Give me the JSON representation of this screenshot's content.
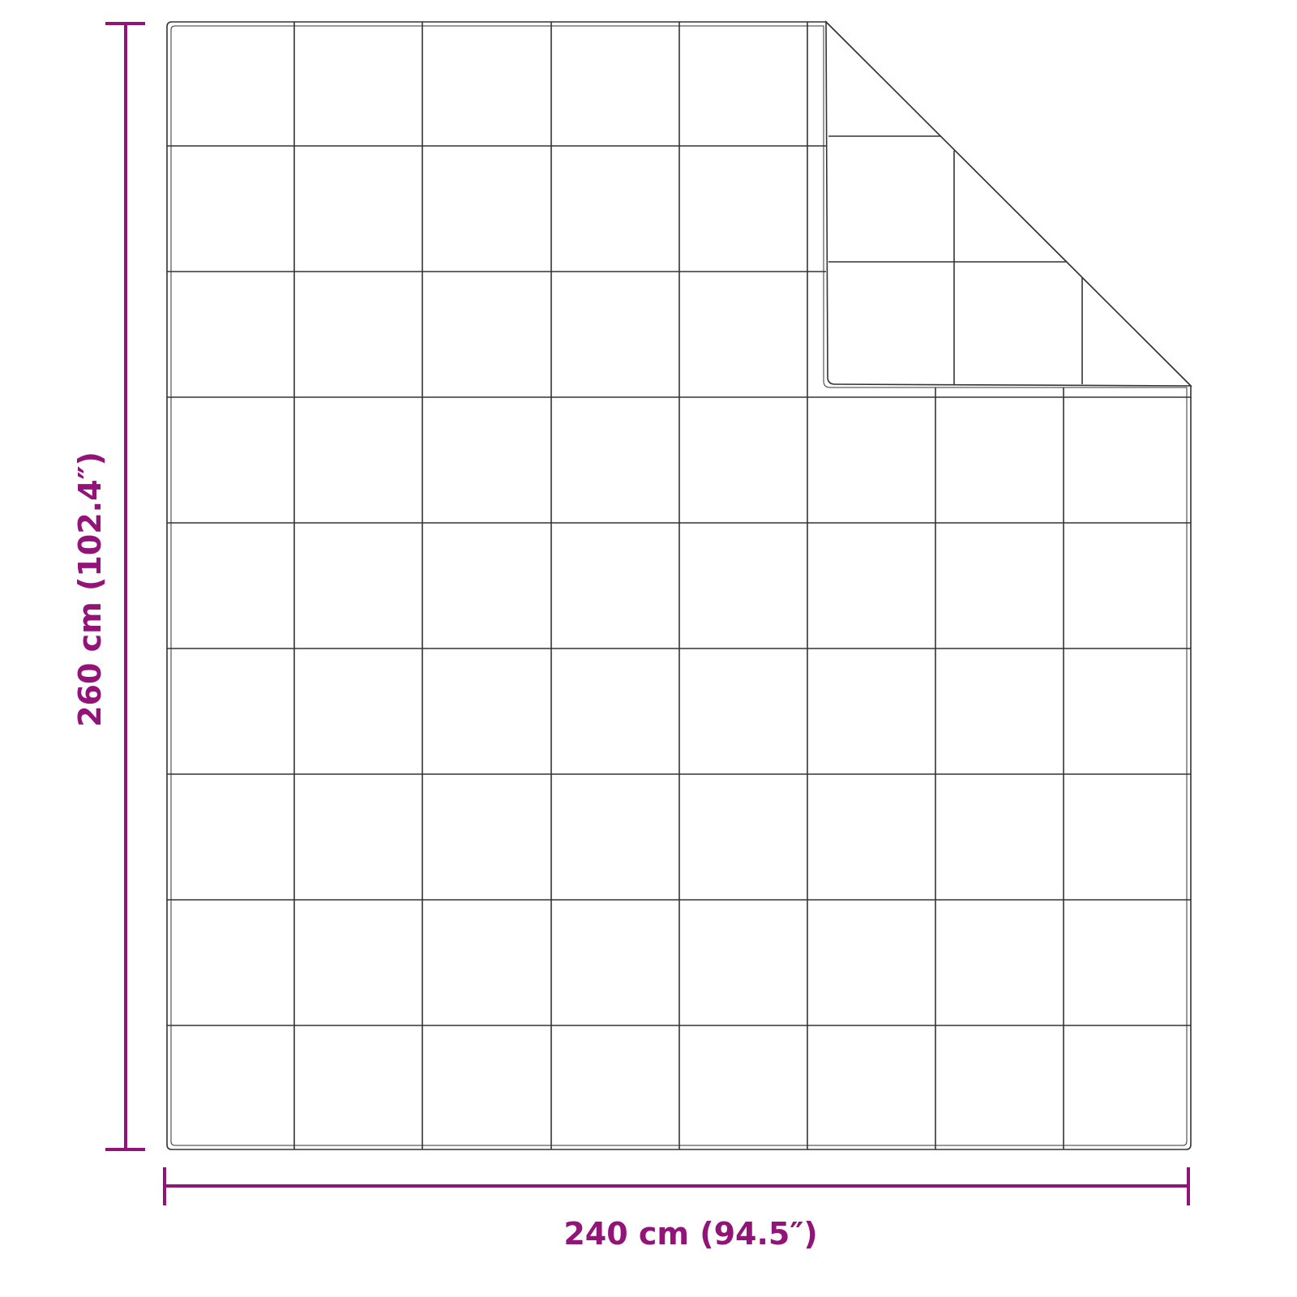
{
  "dimensions": {
    "width_label": "240 cm (94.5″)",
    "height_label": "260 cm (102.4″)"
  },
  "colors": {
    "dimension": "#921479",
    "stitching": "#333333"
  }
}
